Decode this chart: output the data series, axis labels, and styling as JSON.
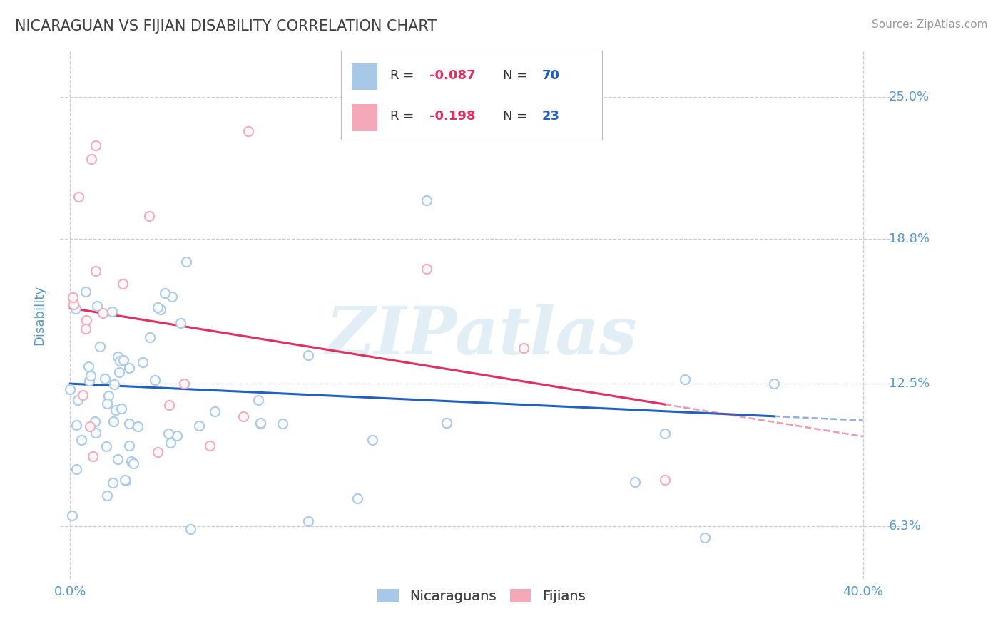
{
  "title": "NICARAGUAN VS FIJIAN DISABILITY CORRELATION CHART",
  "source": "Source: ZipAtlas.com",
  "ylabel": "Disability",
  "ylim": [
    0.04,
    0.27
  ],
  "xlim": [
    -0.005,
    0.42
  ],
  "yticks": [
    0.063,
    0.125,
    0.188,
    0.25
  ],
  "ytick_labels": [
    "6.3%",
    "12.5%",
    "18.8%",
    "25.0%"
  ],
  "r_nicaraguan": -0.087,
  "n_nicaraguan": 70,
  "r_fijian": -0.198,
  "n_fijian": 23,
  "nicaraguan_color": "#a8c8e8",
  "fijian_color": "#f4a8b8",
  "nicaraguan_line_color": "#2060c0",
  "fijian_line_color": "#e03060",
  "watermark": "ZIPatlas",
  "background_color": "#ffffff",
  "grid_color": "#cccccc",
  "title_color": "#404040",
  "axis_label_color": "#5599cc",
  "legend_r_color": "#e03060",
  "legend_n_color": "#2060c0"
}
